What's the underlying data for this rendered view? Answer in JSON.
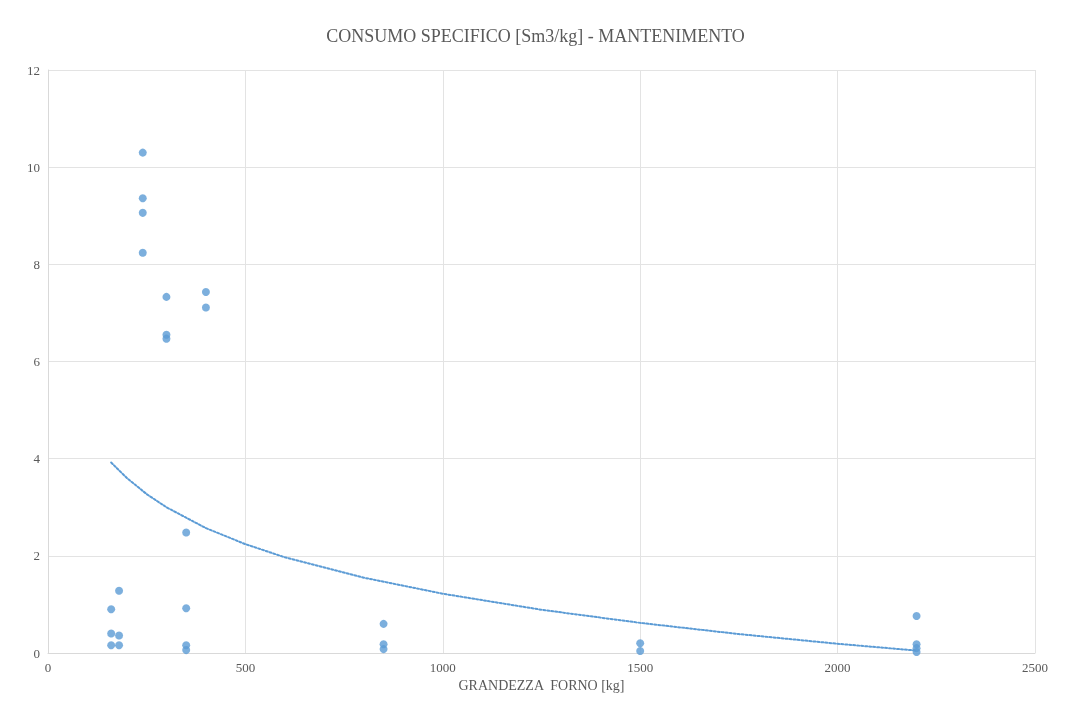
{
  "chart_data": {
    "type": "scatter",
    "title": "CONSUMO SPECIFICO [Sm3/kg] - MANTENIMENTO",
    "xlabel": "GRANDEZZA  FORNO [kg]",
    "xlim": [
      0,
      2500
    ],
    "xticks": [
      0,
      500,
      1000,
      1500,
      2000,
      2500
    ],
    "ylim": [
      0,
      12
    ],
    "yticks": [
      0,
      2,
      4,
      6,
      8,
      10,
      12
    ],
    "grid": true,
    "marker": "circle",
    "series": [
      {
        "color": "#5b9bd5",
        "x": [
          160,
          160,
          160,
          180,
          180,
          180,
          240,
          240,
          240,
          240,
          300,
          300,
          300,
          350,
          350,
          350,
          350,
          400,
          400,
          850,
          850,
          850,
          1500,
          1500,
          2200,
          2200,
          2200,
          2200
        ],
        "values": [
          0.9,
          0.4,
          0.16,
          1.28,
          0.36,
          0.16,
          10.3,
          9.36,
          9.06,
          8.24,
          7.33,
          6.55,
          6.47,
          2.48,
          0.92,
          0.16,
          0.06,
          7.43,
          7.11,
          0.6,
          0.18,
          0.08,
          0.2,
          0.04,
          0.76,
          0.18,
          0.1,
          0.02
        ]
      },
      {
        "type": "line",
        "color": "#5b9bd5",
        "line_style": "dotted",
        "marker": "none",
        "x": [
          160,
          200,
          250,
          300,
          400,
          500,
          600,
          800,
          1000,
          1250,
          1500,
          1750,
          2000,
          2200
        ],
        "values": [
          3.92,
          3.6,
          3.27,
          3.0,
          2.57,
          2.24,
          1.97,
          1.55,
          1.22,
          0.89,
          0.62,
          0.39,
          0.19,
          0.05
        ]
      }
    ]
  }
}
